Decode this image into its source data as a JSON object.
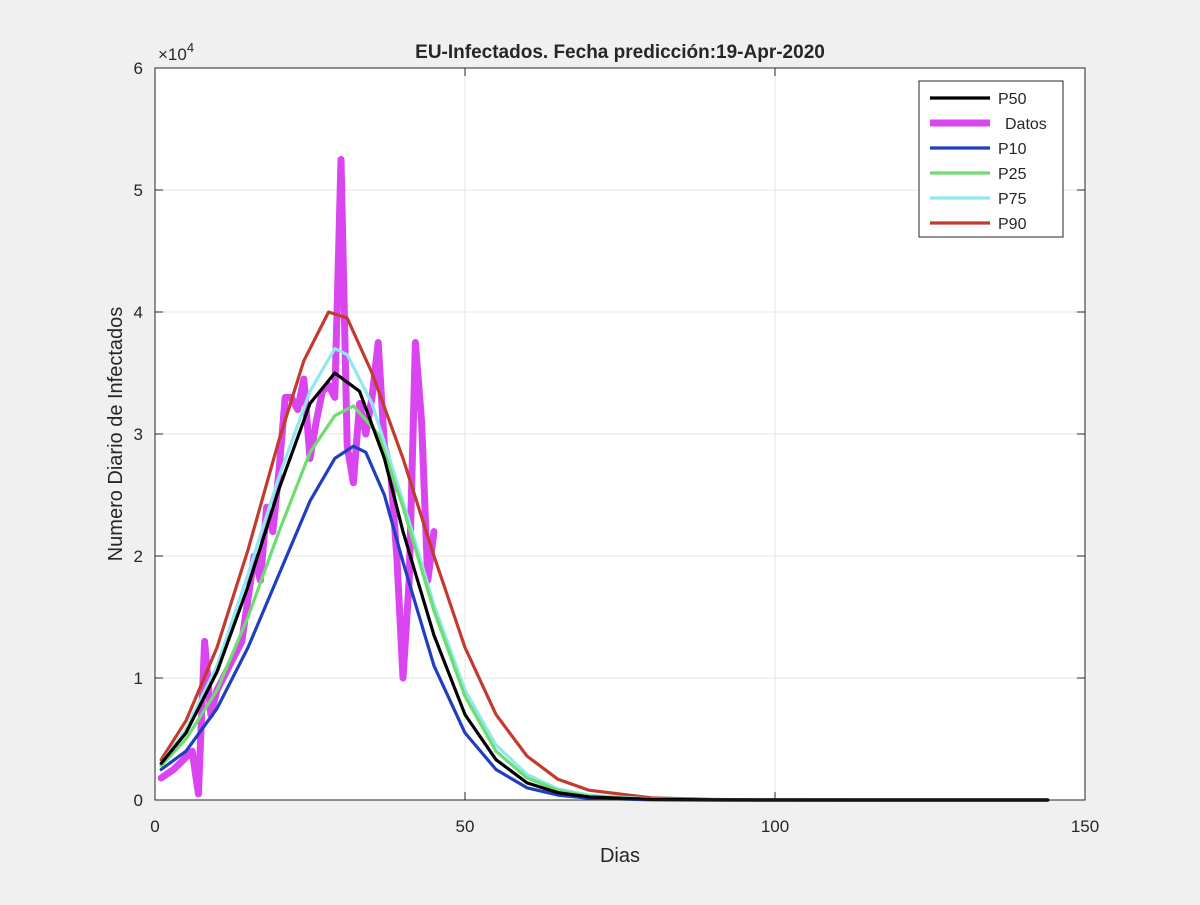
{
  "chart_data": {
    "type": "line",
    "title": "EU-Infectados. Fecha predicción:19-Apr-2020",
    "xlabel": "Dias",
    "ylabel": "Numero Diario de Infectados",
    "exponent_label": "×10",
    "exponent_power": "4",
    "xlim": [
      0,
      150
    ],
    "ylim": [
      0,
      60000
    ],
    "xticks": [
      0,
      50,
      100,
      150
    ],
    "yticks": [
      0,
      10000,
      20000,
      30000,
      40000,
      50000,
      60000
    ],
    "xtick_labels": [
      "0",
      "50",
      "100",
      "150"
    ],
    "ytick_labels": [
      "0",
      "1",
      "2",
      "3",
      "4",
      "5",
      "6"
    ],
    "grid": true,
    "legend_position": "top-right",
    "series": [
      {
        "name": "P50",
        "color": "#000000",
        "x": [
          1,
          5,
          10,
          15,
          20,
          25,
          29,
          33,
          37,
          40,
          45,
          50,
          55,
          60,
          65,
          70,
          80,
          90,
          100,
          120,
          144
        ],
        "y": [
          3000,
          5500,
          10500,
          17500,
          25500,
          32500,
          35000,
          33500,
          28000,
          22000,
          13500,
          7000,
          3300,
          1400,
          600,
          250,
          50,
          10,
          0,
          0,
          0
        ]
      },
      {
        "name": "Datos",
        "color": "#d946ef",
        "x": [
          1,
          3,
          5,
          6,
          7,
          8,
          9,
          10,
          12,
          14,
          16,
          17,
          18,
          19,
          20,
          21,
          22,
          23,
          24,
          25,
          26,
          27,
          28,
          29,
          30,
          31,
          32,
          33,
          34,
          35,
          36,
          37,
          38,
          39,
          40,
          41,
          42,
          43,
          44,
          45
        ],
        "y": [
          1800,
          2500,
          3500,
          4000,
          500,
          13000,
          7000,
          9000,
          11000,
          13000,
          20000,
          18000,
          24000,
          22000,
          27000,
          33000,
          33000,
          32000,
          34500,
          28000,
          31000,
          33500,
          34000,
          33000,
          52500,
          29000,
          26000,
          32500,
          30000,
          33000,
          37500,
          29000,
          27000,
          20000,
          10000,
          18000,
          37500,
          31000,
          18000,
          22000
        ]
      },
      {
        "name": "P10",
        "color": "#1f3fbf",
        "x": [
          1,
          5,
          10,
          15,
          20,
          25,
          29,
          32,
          34,
          37,
          40,
          45,
          50,
          55,
          60,
          65,
          70,
          80,
          90,
          100,
          120,
          144
        ],
        "y": [
          2500,
          4000,
          7500,
          12500,
          18500,
          24500,
          28000,
          29000,
          28500,
          25000,
          19500,
          11000,
          5500,
          2500,
          1000,
          400,
          150,
          20,
          0,
          0,
          0,
          0
        ]
      },
      {
        "name": "P25",
        "color": "#6fdc6f",
        "x": [
          1,
          5,
          10,
          15,
          20,
          25,
          29,
          32,
          36,
          40,
          45,
          50,
          55,
          60,
          65,
          70,
          80,
          90,
          100,
          120,
          144
        ],
        "y": [
          2800,
          5000,
          9000,
          15000,
          22000,
          28500,
          31500,
          32300,
          30000,
          24000,
          15500,
          8500,
          4000,
          1800,
          800,
          300,
          50,
          10,
          0,
          0,
          0
        ]
      },
      {
        "name": "P75",
        "color": "#8fe8f0",
        "x": [
          1,
          5,
          10,
          15,
          20,
          25,
          29,
          31,
          35,
          40,
          45,
          50,
          55,
          60,
          65,
          70,
          80,
          90,
          100,
          120,
          144
        ],
        "y": [
          3000,
          5800,
          11000,
          18500,
          26500,
          33500,
          37000,
          36500,
          32500,
          24500,
          16000,
          9000,
          4500,
          2100,
          900,
          400,
          80,
          15,
          0,
          0,
          0
        ]
      },
      {
        "name": "P90",
        "color": "#c23b2e",
        "x": [
          1,
          5,
          10,
          15,
          20,
          24,
          28,
          31,
          35,
          40,
          45,
          50,
          55,
          60,
          65,
          70,
          80,
          90,
          100,
          120,
          144
        ],
        "y": [
          3300,
          6500,
          12500,
          20500,
          29500,
          36000,
          40000,
          39500,
          35000,
          28000,
          20000,
          12500,
          7000,
          3600,
          1700,
          800,
          180,
          40,
          5,
          0,
          0
        ]
      }
    ]
  }
}
